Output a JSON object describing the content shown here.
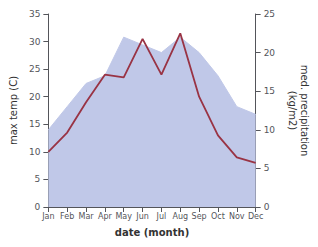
{
  "chart_data": {
    "type": "line",
    "x_label": "date (month)",
    "y_label": "max temp (C)",
    "y2_label": "med. precipitation\n(kg/m2)",
    "categories": [
      "Jan",
      "Feb",
      "Mar",
      "Apr",
      "May",
      "Jun",
      "Jul",
      "Aug",
      "Sep",
      "Oct",
      "Nov",
      "Dec"
    ],
    "series": [
      {
        "type": "area",
        "axis": "y2",
        "color": "#c0c8e8",
        "values": [
          10.0,
          13.0,
          16.0,
          17.0,
          22.0,
          21.0,
          20.0,
          22.0,
          20.0,
          17.0,
          13.0,
          12.0
        ]
      },
      {
        "type": "line",
        "color": "#993344",
        "values": [
          10.0,
          13.5,
          19.0,
          24.0,
          23.5,
          30.5,
          24.0,
          31.5,
          20.0,
          13.0,
          9.0,
          8.0
        ]
      }
    ],
    "ylim": [
      0,
      35
    ],
    "yticks": [
      0,
      5,
      10,
      15,
      20,
      25,
      30,
      35
    ],
    "y2lim": [
      0,
      25
    ],
    "y2ticks": [
      0,
      5,
      10,
      15,
      20,
      25
    ],
    "grid": false
  }
}
